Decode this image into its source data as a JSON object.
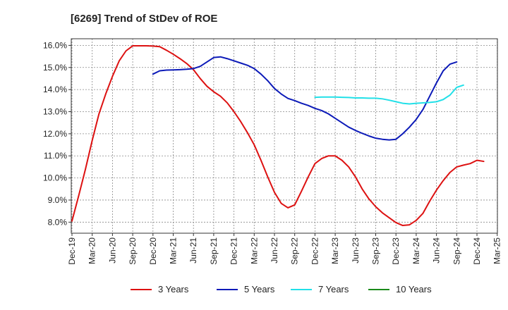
{
  "chart_data": {
    "type": "line",
    "title": "[6269]  Trend of StDev of ROE",
    "xlabel": "",
    "ylabel": "",
    "x_ticks": [
      "Dec-19",
      "Mar-20",
      "Jun-20",
      "Sep-20",
      "Dec-20",
      "Mar-21",
      "Jun-21",
      "Sep-21",
      "Dec-21",
      "Mar-22",
      "Jun-22",
      "Sep-22",
      "Dec-22",
      "Mar-23",
      "Jun-23",
      "Sep-23",
      "Dec-23",
      "Mar-24",
      "Jun-24",
      "Sep-24",
      "Dec-24",
      "Mar-25"
    ],
    "y_ticks": [
      "8.0%",
      "9.0%",
      "10.0%",
      "11.0%",
      "12.0%",
      "13.0%",
      "14.0%",
      "15.0%",
      "16.0%"
    ],
    "ylim": [
      7.5,
      16.3
    ],
    "grid": true,
    "legend_position": "bottom",
    "series": [
      {
        "name": "3 Years",
        "color": "#dd1111",
        "start_index": 0,
        "values": [
          8.05,
          9.2,
          10.4,
          11.7,
          12.9,
          13.8,
          14.6,
          15.3,
          15.75,
          15.98,
          15.98,
          15.98,
          15.97,
          15.94,
          15.78,
          15.6,
          15.4,
          15.18,
          14.9,
          14.5,
          14.15,
          13.9,
          13.7,
          13.4,
          13.0,
          12.55,
          12.05,
          11.5,
          10.8,
          10.05,
          9.35,
          8.85,
          8.65,
          8.78,
          9.4,
          10.05,
          10.65,
          10.88,
          11.0,
          11.0,
          10.8,
          10.5,
          10.05,
          9.5,
          9.05,
          8.7,
          8.42,
          8.2,
          7.98,
          7.85,
          7.88,
          8.08,
          8.4,
          8.95,
          9.45,
          9.88,
          10.25,
          10.5,
          10.58,
          10.65,
          10.8,
          10.75
        ]
      },
      {
        "name": "5 Years",
        "color": "#0c1ab8",
        "start_index": 12,
        "values": [
          14.7,
          14.85,
          14.88,
          14.89,
          14.9,
          14.92,
          14.95,
          15.05,
          15.25,
          15.45,
          15.48,
          15.4,
          15.3,
          15.2,
          15.1,
          14.95,
          14.7,
          14.4,
          14.05,
          13.8,
          13.6,
          13.5,
          13.38,
          13.28,
          13.15,
          13.05,
          12.9,
          12.7,
          12.5,
          12.3,
          12.15,
          12.02,
          11.9,
          11.8,
          11.75,
          11.72,
          11.75,
          12.0,
          12.3,
          12.65,
          13.1,
          13.7,
          14.3,
          14.85,
          15.15,
          15.25
        ]
      },
      {
        "name": "7 Years",
        "color": "#22e0e8",
        "start_index": 36,
        "values": [
          13.65,
          13.66,
          13.66,
          13.66,
          13.65,
          13.64,
          13.62,
          13.62,
          13.61,
          13.61,
          13.58,
          13.52,
          13.45,
          13.38,
          13.35,
          13.38,
          13.4,
          13.42,
          13.45,
          13.55,
          13.75,
          14.1,
          14.2
        ]
      },
      {
        "name": "10 Years",
        "color": "#1a8a1a",
        "start_index": 0,
        "values": []
      }
    ]
  }
}
